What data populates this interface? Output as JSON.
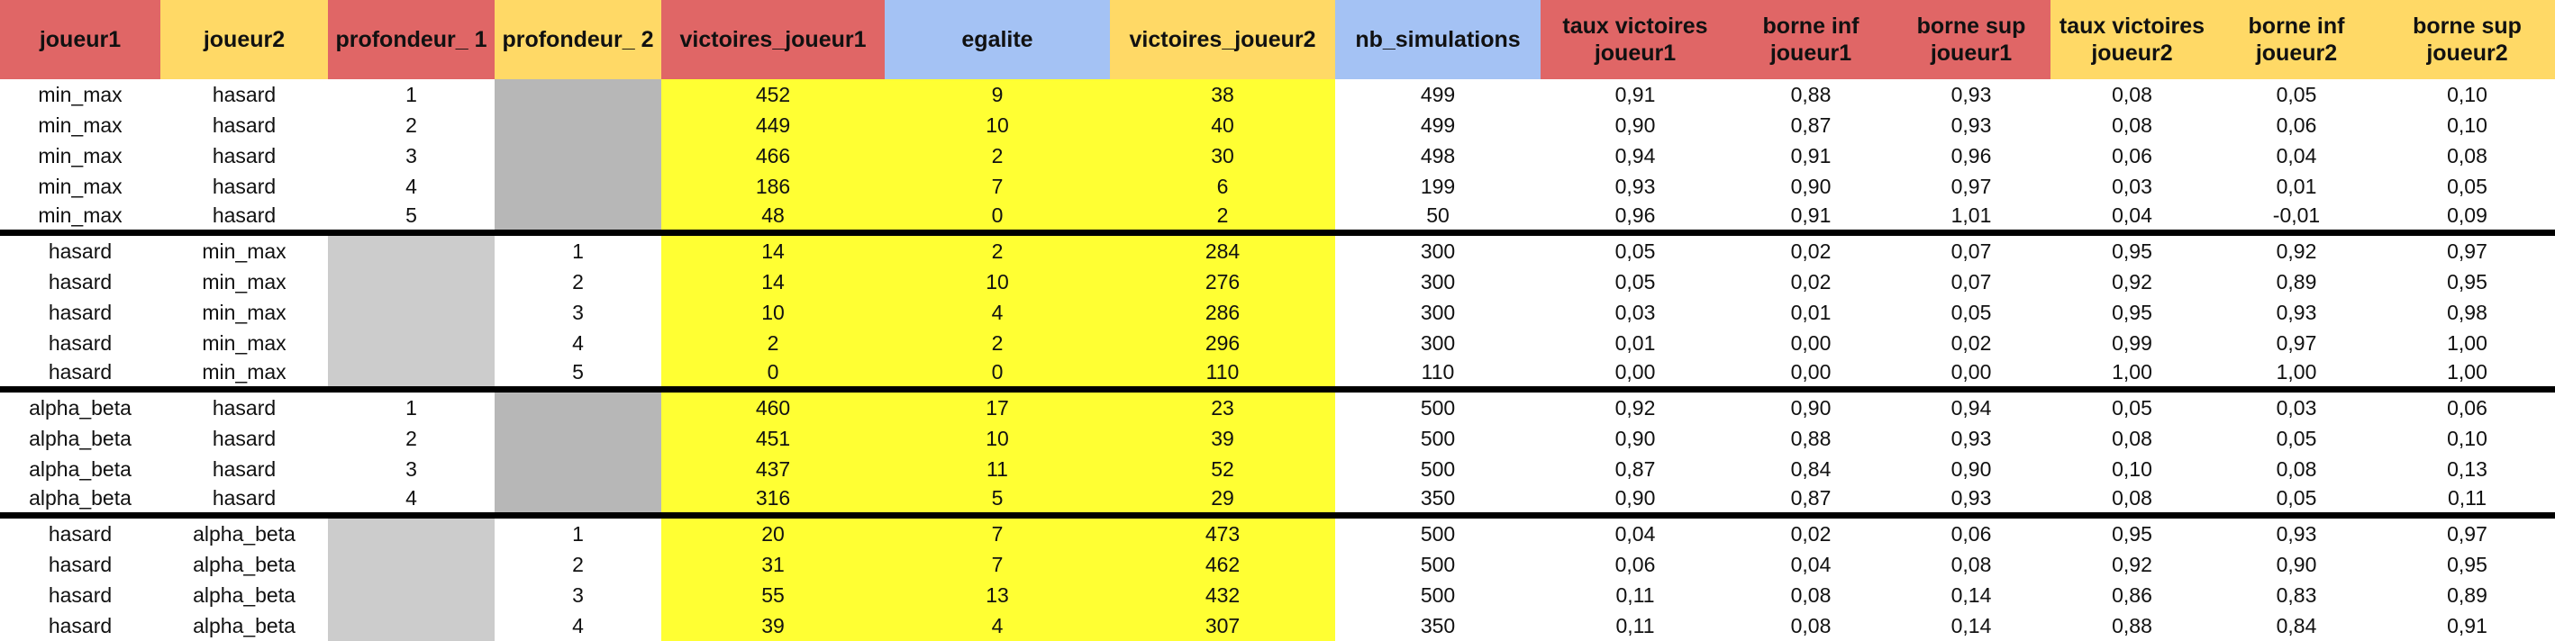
{
  "headers": [
    {
      "label": "joueur1",
      "color": "red"
    },
    {
      "label": "joueur2",
      "color": "yel"
    },
    {
      "label": "profondeur_ 1",
      "color": "red"
    },
    {
      "label": "profondeur_ 2",
      "color": "yel"
    },
    {
      "label": "victoires_joueur1",
      "color": "red"
    },
    {
      "label": "egalite",
      "color": "blu"
    },
    {
      "label": "victoires_joueur2",
      "color": "yel"
    },
    {
      "label": "nb_simulations",
      "color": "blu"
    },
    {
      "label": "taux victoires joueur1",
      "color": "red"
    },
    {
      "label": "borne inf joueur1",
      "color": "red"
    },
    {
      "label": "borne sup joueur1",
      "color": "red"
    },
    {
      "label": "taux victoires joueur2",
      "color": "yel"
    },
    {
      "label": "borne inf joueur2",
      "color": "yel"
    },
    {
      "label": "borne sup joueur2",
      "color": "yel"
    }
  ],
  "rows": [
    [
      "min_max",
      "hasard",
      "1",
      "",
      "452",
      "9",
      "38",
      "499",
      "0,91",
      "0,88",
      "0,93",
      "0,08",
      "0,05",
      "0,10"
    ],
    [
      "min_max",
      "hasard",
      "2",
      "",
      "449",
      "10",
      "40",
      "499",
      "0,90",
      "0,87",
      "0,93",
      "0,08",
      "0,06",
      "0,10"
    ],
    [
      "min_max",
      "hasard",
      "3",
      "",
      "466",
      "2",
      "30",
      "498",
      "0,94",
      "0,91",
      "0,96",
      "0,06",
      "0,04",
      "0,08"
    ],
    [
      "min_max",
      "hasard",
      "4",
      "",
      "186",
      "7",
      "6",
      "199",
      "0,93",
      "0,90",
      "0,97",
      "0,03",
      "0,01",
      "0,05"
    ],
    [
      "min_max",
      "hasard",
      "5",
      "",
      "48",
      "0",
      "2",
      "50",
      "0,96",
      "0,91",
      "1,01",
      "0,04",
      "-0,01",
      "0,09"
    ],
    [
      "hasard",
      "min_max",
      "",
      "1",
      "14",
      "2",
      "284",
      "300",
      "0,05",
      "0,02",
      "0,07",
      "0,95",
      "0,92",
      "0,97"
    ],
    [
      "hasard",
      "min_max",
      "",
      "2",
      "14",
      "10",
      "276",
      "300",
      "0,05",
      "0,02",
      "0,07",
      "0,92",
      "0,89",
      "0,95"
    ],
    [
      "hasard",
      "min_max",
      "",
      "3",
      "10",
      "4",
      "286",
      "300",
      "0,03",
      "0,01",
      "0,05",
      "0,95",
      "0,93",
      "0,98"
    ],
    [
      "hasard",
      "min_max",
      "",
      "4",
      "2",
      "2",
      "296",
      "300",
      "0,01",
      "0,00",
      "0,02",
      "0,99",
      "0,97",
      "1,00"
    ],
    [
      "hasard",
      "min_max",
      "",
      "5",
      "0",
      "0",
      "110",
      "110",
      "0,00",
      "0,00",
      "0,00",
      "1,00",
      "1,00",
      "1,00"
    ],
    [
      "alpha_beta",
      "hasard",
      "1",
      "",
      "460",
      "17",
      "23",
      "500",
      "0,92",
      "0,90",
      "0,94",
      "0,05",
      "0,03",
      "0,06"
    ],
    [
      "alpha_beta",
      "hasard",
      "2",
      "",
      "451",
      "10",
      "39",
      "500",
      "0,90",
      "0,88",
      "0,93",
      "0,08",
      "0,05",
      "0,10"
    ],
    [
      "alpha_beta",
      "hasard",
      "3",
      "",
      "437",
      "11",
      "52",
      "500",
      "0,87",
      "0,84",
      "0,90",
      "0,10",
      "0,08",
      "0,13"
    ],
    [
      "alpha_beta",
      "hasard",
      "4",
      "",
      "316",
      "5",
      "29",
      "350",
      "0,90",
      "0,87",
      "0,93",
      "0,08",
      "0,05",
      "0,11"
    ],
    [
      "hasard",
      "alpha_beta",
      "",
      "1",
      "20",
      "7",
      "473",
      "500",
      "0,04",
      "0,02",
      "0,06",
      "0,95",
      "0,93",
      "0,97"
    ],
    [
      "hasard",
      "alpha_beta",
      "",
      "2",
      "31",
      "7",
      "462",
      "500",
      "0,06",
      "0,04",
      "0,08",
      "0,92",
      "0,90",
      "0,95"
    ],
    [
      "hasard",
      "alpha_beta",
      "",
      "3",
      "55",
      "13",
      "432",
      "500",
      "0,11",
      "0,08",
      "0,14",
      "0,86",
      "0,83",
      "0,89"
    ],
    [
      "hasard",
      "alpha_beta",
      "",
      "4",
      "39",
      "4",
      "307",
      "350",
      "0,11",
      "0,08",
      "0,14",
      "0,88",
      "0,84",
      "0,91"
    ]
  ]
}
